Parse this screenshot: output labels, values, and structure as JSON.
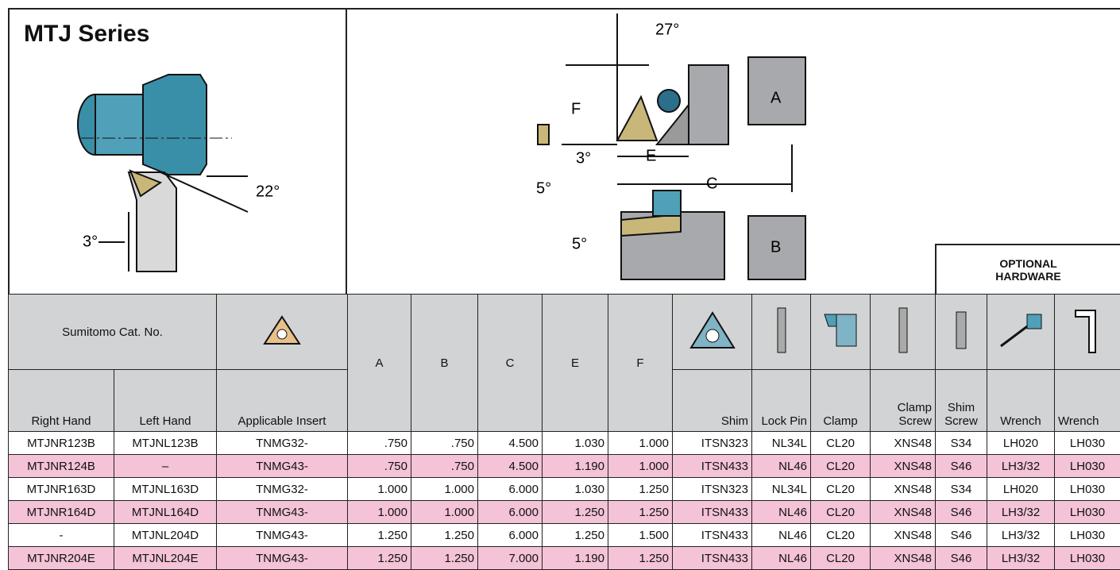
{
  "header": {
    "title": "MTJ Series"
  },
  "left_diagram": {
    "angle_side": "22°",
    "angle_front": "3°"
  },
  "right_diagram": {
    "angle_top": "27°",
    "dim_f": "F",
    "angle_rake": "3°",
    "angle_clear": "5°",
    "dim_e": "E",
    "dim_c": "C",
    "dim_a": "A",
    "angle_side": "5°",
    "dim_b": "B"
  },
  "optional_hardware": "OPTIONAL HARDWARE",
  "table": {
    "group_header": "Sumitomo Cat. No.",
    "columns": [
      "Right Hand",
      "Left Hand",
      "Applicable Insert",
      "A",
      "B",
      "C",
      "E",
      "F",
      "Shim",
      "Lock Pin",
      "Clamp",
      "Clamp Screw",
      "Shim Screw",
      "Wrench",
      "Wrench"
    ],
    "rows": [
      [
        "MTJNR123B",
        "MTJNL123B",
        "TNMG32-",
        ".750",
        ".750",
        "4.500",
        "1.030",
        "1.000",
        "ITSN323",
        "NL34L",
        "CL20",
        "XNS48",
        "S34",
        "LH020",
        "LH030"
      ],
      [
        "MTJNR124B",
        "–",
        "TNMG43-",
        ".750",
        ".750",
        "4.500",
        "1.190",
        "1.000",
        "ITSN433",
        "NL46",
        "CL20",
        "XNS48",
        "S46",
        "LH3/32",
        "LH030"
      ],
      [
        "MTJNR163D",
        "MTJNL163D",
        "TNMG32-",
        "1.000",
        "1.000",
        "6.000",
        "1.030",
        "1.250",
        "ITSN323",
        "NL34L",
        "CL20",
        "XNS48",
        "S34",
        "LH020",
        "LH030"
      ],
      [
        "MTJNR164D",
        "MTJNL164D",
        "TNMG43-",
        "1.000",
        "1.000",
        "6.000",
        "1.250",
        "1.250",
        "ITSN433",
        "NL46",
        "CL20",
        "XNS48",
        "S46",
        "LH3/32",
        "LH030"
      ],
      [
        "-",
        "MTJNL204D",
        "TNMG43-",
        "1.250",
        "1.250",
        "6.000",
        "1.250",
        "1.500",
        "ITSN433",
        "NL46",
        "CL20",
        "XNS48",
        "S46",
        "LH3/32",
        "LH030"
      ],
      [
        "MTJNR204E",
        "MTJNL204E",
        "TNMG43-",
        "1.250",
        "1.250",
        "7.000",
        "1.190",
        "1.250",
        "ITSN433",
        "NL46",
        "CL20",
        "XNS48",
        "S46",
        "LH3/32",
        "LH030"
      ]
    ]
  }
}
